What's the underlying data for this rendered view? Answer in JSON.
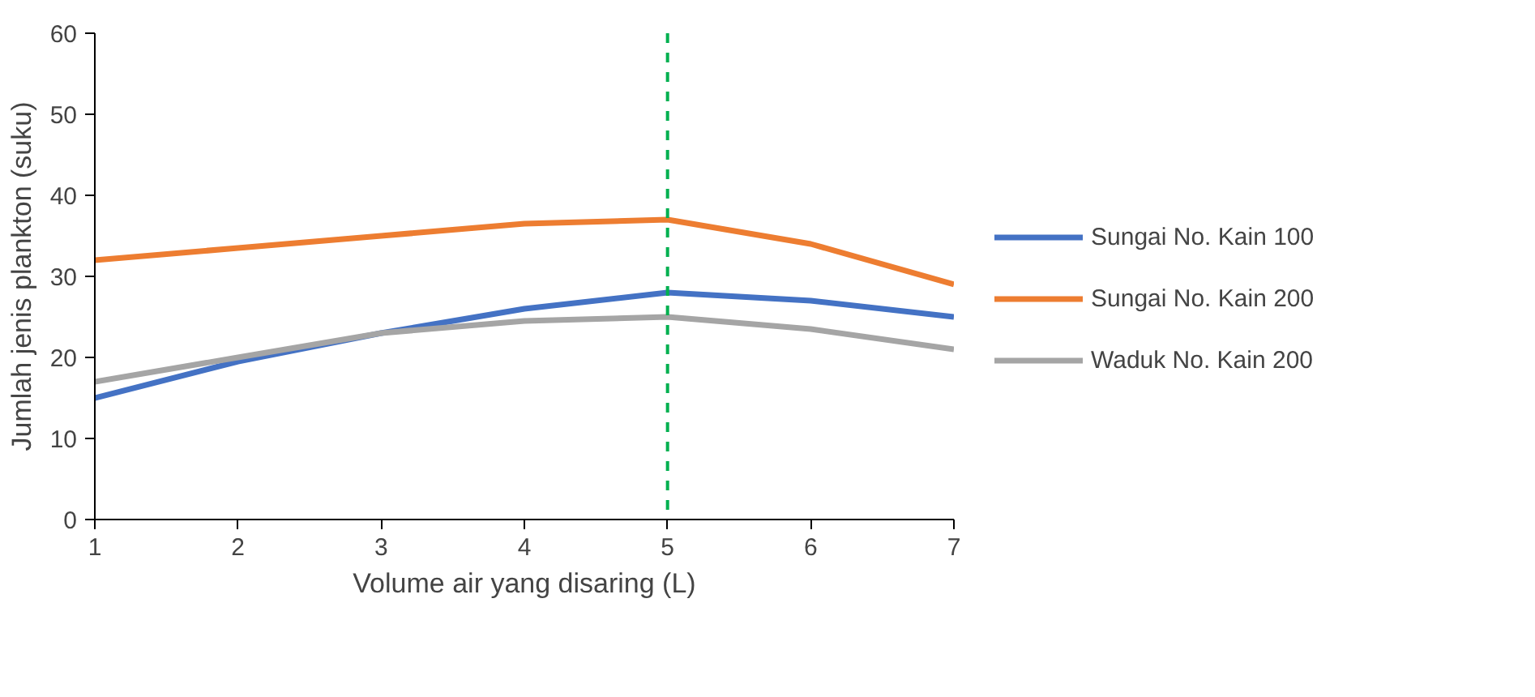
{
  "chart_data": {
    "type": "line",
    "xlabel": "Volume air yang disaring (L)",
    "ylabel": "Jumlah jenis plankton (suku)",
    "x": [
      1,
      2,
      3,
      4,
      5,
      6,
      7
    ],
    "series": [
      {
        "name": "Sungai No. Kain 100",
        "color": "#4472c4",
        "values": [
          15,
          19.5,
          23,
          26,
          28,
          27,
          25
        ]
      },
      {
        "name": "Sungai No. Kain 200",
        "color": "#ed7d31",
        "values": [
          32,
          33.5,
          35,
          36.5,
          37,
          34,
          29
        ]
      },
      {
        "name": "Waduk No. Kain 200",
        "color": "#a5a5a5",
        "values": [
          17,
          20,
          23,
          24.5,
          25,
          23.5,
          21
        ]
      }
    ],
    "xlim": [
      1,
      7
    ],
    "xticks": [
      1,
      2,
      3,
      4,
      5,
      6,
      7
    ],
    "ylim": [
      0,
      60
    ],
    "yticks": [
      0,
      10,
      20,
      30,
      40,
      50,
      60
    ],
    "ref_lines": [
      {
        "axis": "x",
        "value": 5,
        "color": "#00b050",
        "line_style": "dashed"
      }
    ],
    "grid": false,
    "legend": "right",
    "marker": "none",
    "line_style": "solid"
  }
}
